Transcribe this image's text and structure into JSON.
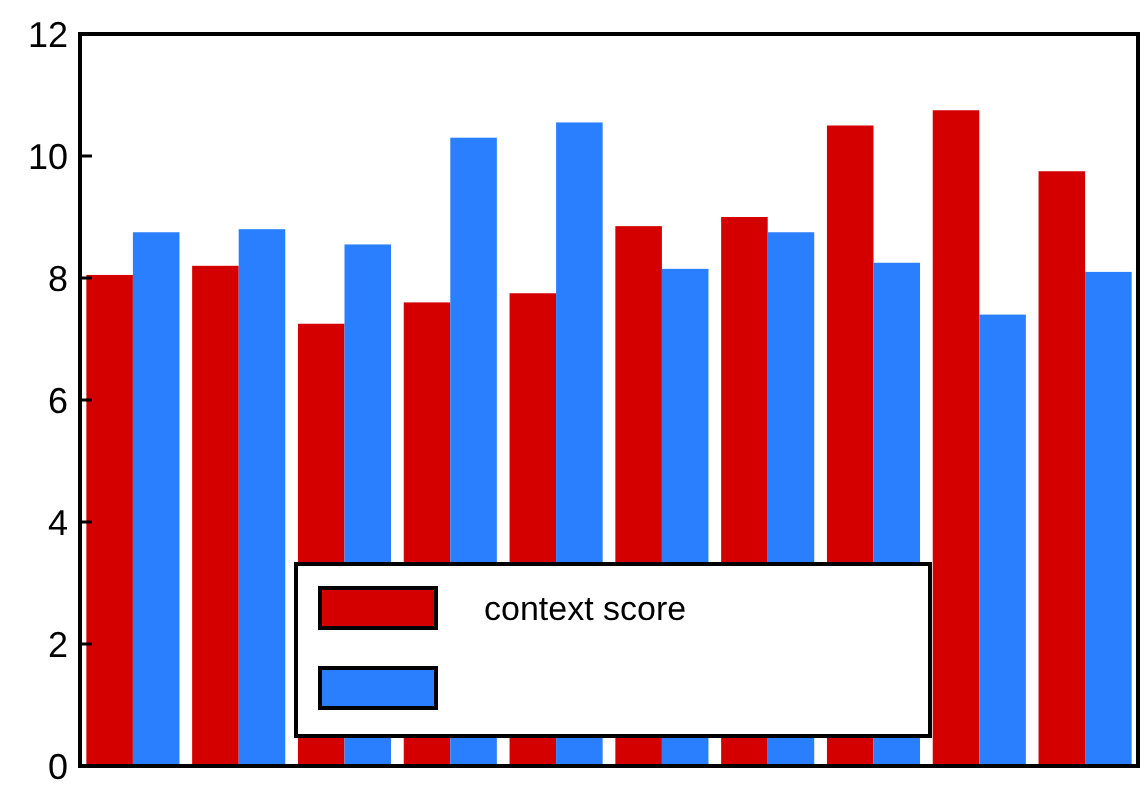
{
  "chart_data": {
    "type": "bar",
    "categories": [
      null,
      null,
      null,
      null,
      null,
      null,
      null,
      null,
      null,
      null
    ],
    "series": [
      {
        "name": "context score",
        "color": "#d40000",
        "values": [
          8.05,
          8.2,
          7.25,
          7.6,
          7.75,
          8.85,
          9.0,
          10.5,
          10.75,
          9.75
        ]
      },
      {
        "color": "#2a7fff",
        "values": [
          8.75,
          8.8,
          8.55,
          10.3,
          10.55,
          8.15,
          8.75,
          8.25,
          7.4,
          8.1
        ]
      }
    ],
    "ylim": [
      0,
      12
    ],
    "yticks": [
      0,
      2,
      4,
      6,
      8,
      10,
      12
    ],
    "legend": "bottom",
    "grid": false
  }
}
